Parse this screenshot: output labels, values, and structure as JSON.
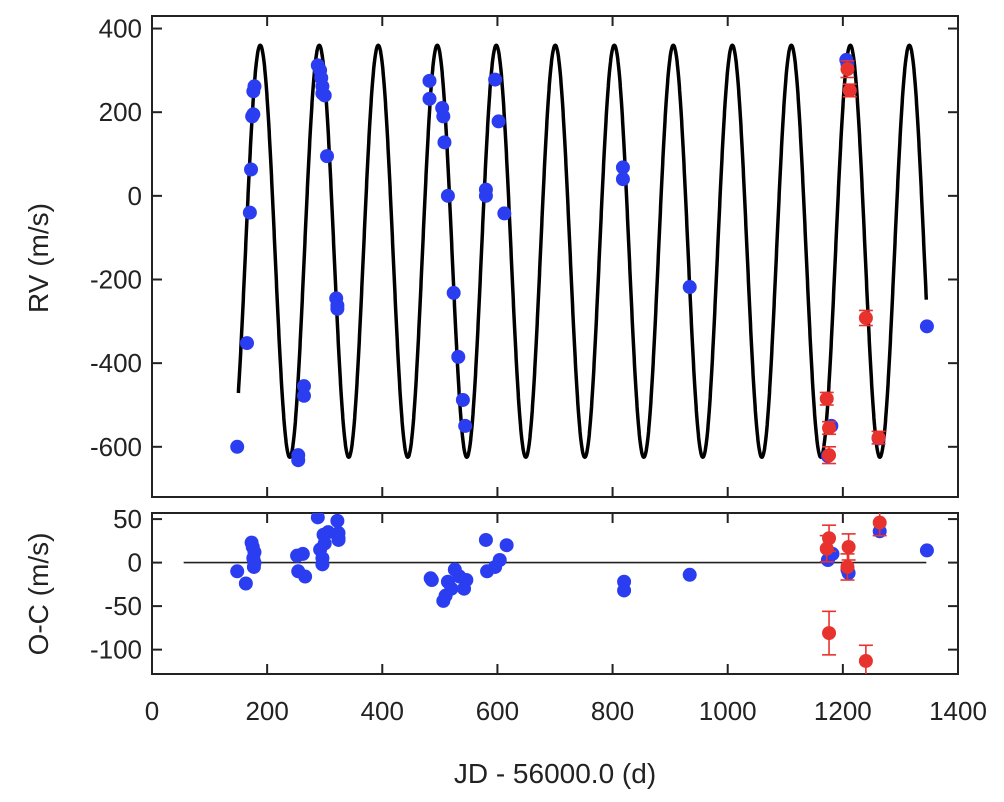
{
  "chart_data": [
    {
      "type": "scatter",
      "panel": "top",
      "xlabel": "",
      "ylabel": "RV (m/s)",
      "xlim": [
        0,
        1400
      ],
      "ylim": [
        -720,
        430
      ],
      "x_ticks": [
        0,
        200,
        400,
        600,
        800,
        1000,
        1200,
        1400
      ],
      "y_ticks": [
        400,
        200,
        0,
        -200,
        -400,
        -600
      ],
      "y_tick_labels": [
        "400",
        "200",
        "0",
        "-200",
        "-400",
        "-600"
      ],
      "model": {
        "name": "orbital fit",
        "color": "#000000",
        "period_d": 102.5,
        "phase_ref_jd": 188,
        "max_rv": 360,
        "min_rv": -625,
        "x_range": [
          150,
          1345
        ]
      },
      "series": [
        {
          "name": "blue",
          "color": "#2b3df0",
          "points": [
            [
              148,
              -600
            ],
            [
              165,
              -352
            ],
            [
              170,
              -40
            ],
            [
              172,
              63
            ],
            [
              174,
              190
            ],
            [
              176,
              195
            ],
            [
              176,
              250
            ],
            [
              178,
              262
            ],
            [
              254,
              -620
            ],
            [
              254,
              -632
            ],
            [
              264,
              -455
            ],
            [
              264,
              -478
            ],
            [
              288,
              312
            ],
            [
              292,
              300
            ],
            [
              294,
              282
            ],
            [
              296,
              262
            ],
            [
              296,
              245
            ],
            [
              300,
              240
            ],
            [
              304,
              95
            ],
            [
              320,
              -245
            ],
            [
              322,
              -262
            ],
            [
              322,
              -270
            ],
            [
              482,
              275
            ],
            [
              482,
              232
            ],
            [
              504,
              210
            ],
            [
              506,
              190
            ],
            [
              508,
              128
            ],
            [
              514,
              0
            ],
            [
              524,
              -232
            ],
            [
              532,
              -385
            ],
            [
              540,
              -488
            ],
            [
              544,
              -550
            ],
            [
              580,
              15
            ],
            [
              580,
              0
            ],
            [
              596,
              278
            ],
            [
              602,
              178
            ],
            [
              612,
              -42
            ],
            [
              818,
              68
            ],
            [
              818,
              40
            ],
            [
              934,
              -218
            ],
            [
              1174,
              -622
            ],
            [
              1180,
              -550
            ],
            [
              1206,
              325
            ],
            [
              1208,
              315
            ],
            [
              1262,
              -580
            ],
            [
              1346,
              -312
            ]
          ]
        },
        {
          "name": "red",
          "color": "#e8322d",
          "points": [
            [
              1172,
              -485,
              15
            ],
            [
              1176,
              -555,
              15
            ],
            [
              1176,
              -620,
              20
            ],
            [
              1208,
              303,
              20
            ],
            [
              1212,
              252,
              15
            ],
            [
              1240,
              -292,
              18
            ],
            [
              1262,
              -578,
              15
            ]
          ]
        }
      ]
    },
    {
      "type": "scatter",
      "panel": "bottom",
      "xlabel": "JD - 56000.0 (d)",
      "ylabel": "O-C (m/s)",
      "xlim": [
        0,
        1400
      ],
      "ylim": [
        -128,
        57
      ],
      "x_ticks": [
        0,
        200,
        400,
        600,
        800,
        1000,
        1200,
        1400
      ],
      "x_tick_labels": [
        "0",
        "200",
        "400",
        "600",
        "800",
        "1000",
        "1200",
        "1400"
      ],
      "y_ticks": [
        50,
        0,
        -50,
        -100
      ],
      "y_tick_labels": [
        "50",
        "0",
        "-50",
        "-100"
      ],
      "reference_line": {
        "y": 0,
        "x_range": [
          55,
          1345
        ]
      },
      "series": [
        {
          "name": "blue",
          "color": "#2b3df0",
          "points": [
            [
              148,
              -10
            ],
            [
              163,
              -24
            ],
            [
              173,
              23
            ],
            [
              175,
              18
            ],
            [
              176,
              5
            ],
            [
              177,
              -5
            ],
            [
              178,
              12
            ],
            [
              178,
              0
            ],
            [
              252,
              8
            ],
            [
              254,
              -10
            ],
            [
              262,
              10
            ],
            [
              266,
              -16
            ],
            [
              288,
              52
            ],
            [
              292,
              15
            ],
            [
              296,
              5
            ],
            [
              296,
              -2
            ],
            [
              298,
              32
            ],
            [
              300,
              22
            ],
            [
              306,
              35
            ],
            [
              322,
              48
            ],
            [
              324,
              34
            ],
            [
              324,
              28
            ],
            [
              324,
              26
            ],
            [
              484,
              -18
            ],
            [
              486,
              -20
            ],
            [
              506,
              -44
            ],
            [
              510,
              -38
            ],
            [
              514,
              -22
            ],
            [
              520,
              -30
            ],
            [
              526,
              -8
            ],
            [
              534,
              -16
            ],
            [
              542,
              -30
            ],
            [
              546,
              -20
            ],
            [
              580,
              26
            ],
            [
              582,
              -10
            ],
            [
              596,
              -5
            ],
            [
              604,
              3
            ],
            [
              616,
              20
            ],
            [
              820,
              -22
            ],
            [
              820,
              -32
            ],
            [
              934,
              -14
            ],
            [
              1174,
              3
            ],
            [
              1182,
              10
            ],
            [
              1208,
              -8
            ],
            [
              1210,
              -12
            ],
            [
              1264,
              36
            ],
            [
              1346,
              14
            ]
          ]
        },
        {
          "name": "red",
          "color": "#e8322d",
          "points": [
            [
              1172,
              16,
              15
            ],
            [
              1176,
              28,
              15
            ],
            [
              1176,
              -81,
              25
            ],
            [
              1208,
              -5,
              15
            ],
            [
              1210,
              18,
              15
            ],
            [
              1240,
              -113,
              18
            ],
            [
              1264,
              46,
              15
            ]
          ]
        }
      ]
    }
  ]
}
